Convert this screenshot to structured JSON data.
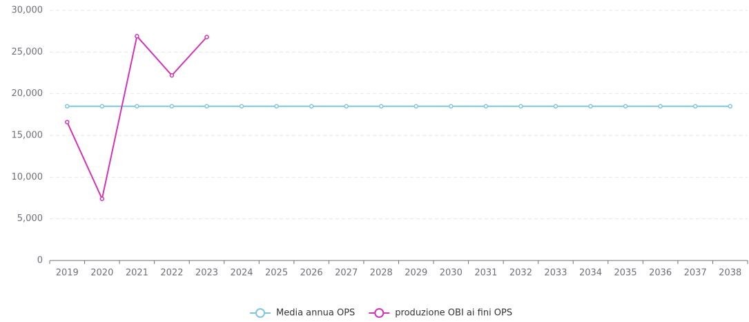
{
  "chart_data": {
    "type": "line",
    "categories": [
      "2019",
      "2020",
      "2021",
      "2022",
      "2023",
      "2024",
      "2025",
      "2026",
      "2027",
      "2028",
      "2029",
      "2030",
      "2031",
      "2032",
      "2033",
      "2034",
      "2035",
      "2036",
      "2037",
      "2038"
    ],
    "series": [
      {
        "name": "Media annua OPS",
        "color": "#7cc6e0",
        "values": [
          18500,
          18500,
          18500,
          18500,
          18500,
          18500,
          18500,
          18500,
          18500,
          18500,
          18500,
          18500,
          18500,
          18500,
          18500,
          18500,
          18500,
          18500,
          18500,
          18500
        ]
      },
      {
        "name": "produzione OBI ai fini OPS",
        "color": "#d133b5",
        "values": [
          16600,
          7400,
          26900,
          22200,
          26800,
          null,
          null,
          null,
          null,
          null,
          null,
          null,
          null,
          null,
          null,
          null,
          null,
          null,
          null,
          null
        ]
      }
    ],
    "ylim": [
      0,
      30000
    ],
    "yticks": [
      0,
      {
        "value": 5000,
        "label": "5,000"
      },
      {
        "value": 10000,
        "label": "10,000"
      },
      {
        "value": 15000,
        "label": "15,000"
      },
      {
        "value": 20000,
        "label": "20,000"
      },
      {
        "value": 25000,
        "label": "25,000"
      },
      {
        "value": 30000,
        "label": "30,000"
      }
    ],
    "grid": true,
    "legend": "bottom"
  }
}
